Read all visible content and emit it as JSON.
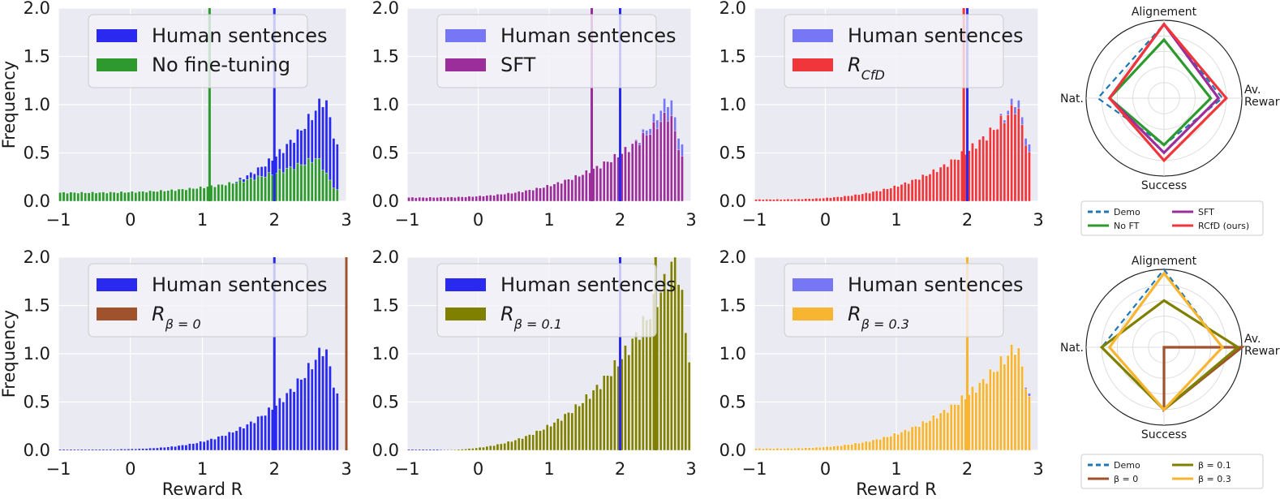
{
  "colors": {
    "human_strong": "#2929f0",
    "human_light": "#7777f5",
    "no_finetuning": "#2e9a2e",
    "sft": "#9b2e9b",
    "rcfd": "#f0353b",
    "beta0": "#a0522d",
    "beta01": "#808000",
    "beta03": "#f7b531",
    "demo": "#1f77b4",
    "plot_bg": "#eaeaf2"
  },
  "chart_data": [
    {
      "type": "bar",
      "panel": "top-1",
      "xlim": [
        -1,
        3
      ],
      "ylim": [
        0,
        2.0
      ],
      "xticks": [
        "−1",
        "0",
        "1",
        "2",
        "3"
      ],
      "yticks": [
        "0.0",
        "0.5",
        "1.0",
        "1.5",
        "2.0"
      ],
      "ylabel": "Frequency",
      "xlabel": "",
      "legend": [
        {
          "label": "Human sentences",
          "color": "#2929f0"
        },
        {
          "label": "No fine-tuning",
          "color": "#2e9a2e"
        }
      ],
      "vlines": [
        {
          "x": 1.1,
          "color": "#2e9a2e"
        },
        {
          "x": 2.0,
          "color": "#2929f0"
        }
      ],
      "series": [
        {
          "name": "Human sentences",
          "color": "#2929f0",
          "peak": 2.7,
          "peak_height": 1.08,
          "spread_left": 0.9,
          "end": 2.9
        },
        {
          "name": "No fine-tuning",
          "color": "#2e9a2e",
          "flat_start": 0.09,
          "peak": 2.6,
          "peak_height": 0.45,
          "end": 2.9
        }
      ]
    },
    {
      "type": "bar",
      "panel": "top-2",
      "xlim": [
        -1,
        3
      ],
      "ylim": [
        0,
        2.0
      ],
      "xticks": [
        "−1",
        "0",
        "1",
        "2",
        "3"
      ],
      "yticks": [
        "0.0",
        "0.5",
        "1.0",
        "1.5",
        "2.0"
      ],
      "ylabel": "",
      "xlabel": "",
      "legend": [
        {
          "label": "Human sentences",
          "color": "#7777f5"
        },
        {
          "label": "SFT",
          "color": "#9b2e9b"
        }
      ],
      "vlines": [
        {
          "x": 1.6,
          "color": "#9b2e9b"
        },
        {
          "x": 2.0,
          "color": "#2929f0"
        }
      ],
      "series": [
        {
          "name": "Human sentences",
          "color": "#7777f5",
          "peak": 2.7,
          "peak_height": 1.08,
          "spread_left": 0.9,
          "end": 2.9
        },
        {
          "name": "SFT",
          "color": "#9b2e9b",
          "flat_start": 0.04,
          "peak": 2.7,
          "peak_height": 0.92,
          "end": 2.9
        }
      ]
    },
    {
      "type": "bar",
      "panel": "top-3",
      "xlim": [
        -1,
        3
      ],
      "ylim": [
        0,
        2.0
      ],
      "xticks": [
        "−1",
        "0",
        "1",
        "2",
        "3"
      ],
      "yticks": [
        "0.0",
        "0.5",
        "1.0",
        "1.5",
        "2.0"
      ],
      "ylabel": "",
      "xlabel": "",
      "legend": [
        {
          "label": "Human sentences",
          "color": "#7777f5"
        },
        {
          "label": "R",
          "sub": "CfD",
          "color": "#f0353b"
        }
      ],
      "vlines": [
        {
          "x": 1.95,
          "color": "#f0353b"
        },
        {
          "x": 2.0,
          "color": "#2929f0"
        }
      ],
      "series": [
        {
          "name": "Human sentences",
          "color": "#7777f5",
          "peak": 2.7,
          "peak_height": 1.08,
          "spread_left": 0.9,
          "end": 2.9
        },
        {
          "name": "RCfD",
          "color": "#f0353b",
          "flat_start": 0.02,
          "peak": 2.7,
          "peak_height": 1.0,
          "end": 2.9
        }
      ]
    },
    {
      "type": "bar",
      "panel": "bottom-1",
      "xlim": [
        -1,
        3
      ],
      "ylim": [
        0,
        2.0
      ],
      "xticks": [
        "−1",
        "0",
        "1",
        "2",
        "3"
      ],
      "yticks": [
        "0.0",
        "0.5",
        "1.0",
        "1.5",
        "2.0"
      ],
      "ylabel": "Frequency",
      "xlabel": "Reward R",
      "legend": [
        {
          "label": "Human sentences",
          "color": "#2929f0"
        },
        {
          "label": "R",
          "sub": "β = 0",
          "color": "#a0522d"
        }
      ],
      "vlines": [
        {
          "x": 2.0,
          "color": "#2929f0"
        },
        {
          "x": 3.0,
          "color": "#a0522d"
        }
      ],
      "series": [
        {
          "name": "Human sentences",
          "color": "#2929f0",
          "peak": 2.7,
          "peak_height": 1.08,
          "spread_left": 0.9,
          "end": 2.9
        }
      ]
    },
    {
      "type": "bar",
      "panel": "bottom-2",
      "xlim": [
        -1,
        3
      ],
      "ylim": [
        0,
        2.0
      ],
      "xticks": [
        "−1",
        "0",
        "1",
        "2",
        "3"
      ],
      "yticks": [
        "0.0",
        "0.5",
        "1.0",
        "1.5",
        "2.0"
      ],
      "ylabel": "",
      "xlabel": "",
      "legend": [
        {
          "label": "Human sentences",
          "color": "#2929f0"
        },
        {
          "label": "R",
          "sub": "β = 0.1",
          "color": "#808000"
        }
      ],
      "vlines": [
        {
          "x": 2.0,
          "color": "#2929f0"
        },
        {
          "x": 2.5,
          "color": "#808000"
        }
      ],
      "series": [
        {
          "name": "Human sentences",
          "color": "#2929f0",
          "peak": 2.7,
          "peak_height": 1.08,
          "spread_left": 0.9,
          "end": 2.9
        },
        {
          "name": "beta 0.1",
          "color": "#808000",
          "flat_start": 0.0,
          "peak": 2.8,
          "peak_height": 2.0,
          "end": 3.0
        }
      ]
    },
    {
      "type": "bar",
      "panel": "bottom-3",
      "xlim": [
        -1,
        3
      ],
      "ylim": [
        0,
        2.0
      ],
      "xticks": [
        "−1",
        "0",
        "1",
        "2",
        "3"
      ],
      "yticks": [
        "0.0",
        "0.5",
        "1.0",
        "1.5",
        "2.0"
      ],
      "ylabel": "",
      "xlabel": "Reward R",
      "legend": [
        {
          "label": "Human sentences",
          "color": "#7777f5"
        },
        {
          "label": "R",
          "sub": "β = 0.3",
          "color": "#f7b531"
        }
      ],
      "vlines": [
        {
          "x": 2.0,
          "color": "#f7b531"
        }
      ],
      "series": [
        {
          "name": "Human sentences",
          "color": "#7777f5",
          "peak": 2.7,
          "peak_height": 1.08,
          "spread_left": 0.9,
          "end": 2.9
        },
        {
          "name": "beta 0.3",
          "color": "#f7b531",
          "flat_start": 0.02,
          "peak": 2.7,
          "peak_height": 1.1,
          "end": 2.9
        }
      ]
    },
    {
      "type": "radar",
      "panel": "radar-top",
      "axes": [
        "Alignement",
        "Av.\nReward",
        "Success",
        "Nat."
      ],
      "rmax": 1.0,
      "series": [
        {
          "name": "Demo",
          "color": "#1f77b4",
          "dashed": true,
          "values": [
            0.95,
            0.75,
            0.6,
            0.85
          ]
        },
        {
          "name": "No FT",
          "color": "#2e9a2e",
          "dashed": false,
          "values": [
            0.75,
            0.6,
            0.6,
            0.7
          ]
        },
        {
          "name": "SFT",
          "color": "#9b2e9b",
          "dashed": false,
          "values": [
            0.95,
            0.7,
            0.7,
            0.7
          ]
        },
        {
          "name": "RCfD (ours)",
          "color": "#f0353b",
          "dashed": false,
          "values": [
            0.95,
            0.8,
            0.8,
            0.7
          ]
        }
      ],
      "legend": [
        {
          "label": "Demo",
          "color": "#1f77b4",
          "dashed": true
        },
        {
          "label": "SFT",
          "color": "#9b2e9b",
          "dashed": false
        },
        {
          "label": "No FT",
          "color": "#2e9a2e",
          "dashed": false
        },
        {
          "label": "RCfD (ours)",
          "color": "#f0353b",
          "dashed": false
        }
      ]
    },
    {
      "type": "radar",
      "panel": "radar-bottom",
      "axes": [
        "Alignement",
        "Av.\nReward",
        "Success",
        "Nat."
      ],
      "rmax": 1.0,
      "series": [
        {
          "name": "Demo",
          "color": "#1f77b4",
          "dashed": true,
          "values": [
            1.0,
            0.75,
            0.8,
            0.8
          ]
        },
        {
          "name": "beta 0",
          "color": "#a0522d",
          "dashed": false,
          "values": [
            0.0,
            1.0,
            0.8,
            0.0
          ]
        },
        {
          "name": "beta 0.1",
          "color": "#808000",
          "dashed": false,
          "values": [
            0.6,
            0.95,
            0.8,
            0.8
          ]
        },
        {
          "name": "beta 0.3",
          "color": "#f7b531",
          "dashed": false,
          "values": [
            0.95,
            0.75,
            0.8,
            0.7
          ]
        }
      ],
      "legend": [
        {
          "label": "Demo",
          "color": "#1f77b4",
          "dashed": true
        },
        {
          "label": "β = 0.1",
          "color": "#808000",
          "dashed": false
        },
        {
          "label": "β = 0",
          "color": "#a0522d",
          "dashed": false
        },
        {
          "label": "β = 0.3",
          "color": "#f7b531",
          "dashed": false
        }
      ]
    }
  ]
}
